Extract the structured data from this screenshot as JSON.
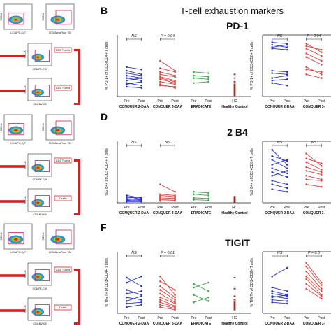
{
  "figure": {
    "title": "T-cell exhaustion markers",
    "colors": {
      "conquer2": "#2a35c8",
      "conquer3": "#e0403a",
      "eradicate": "#3aaa4a",
      "hc": "#b0201a",
      "flow_red": "#d62020"
    },
    "flow_labels": {
      "fsc": "FSC-A",
      "ssc": "SSC-A",
      "live": "L/D-APC-Cy7",
      "cd3": "CD3-AlexaFluor 700",
      "cd8": "CD8-PE-Cy5",
      "cd4": "CD4-BV605",
      "gate_cd8": "CD8 T cells",
      "gate_cd4": "CD4 T cells",
      "gate_t": "T cells"
    },
    "panels": [
      {
        "letter": "B",
        "marker": "PD-1",
        "left": {
          "ylabel": "% PD-1+ of CD3+CD4+ T cells",
          "stats": [
            "NS",
            "P = 0.04",
            "",
            ""
          ],
          "groups": [
            "CONQUER 2-DAA",
            "CONQUER 3-DAA",
            "ERADICATE",
            "Healthy Control"
          ],
          "ticks": [
            "Pre",
            "Post",
            "Pre",
            "Post",
            "Pre",
            "Post",
            "HC"
          ]
        },
        "right": {
          "ylabel": "% PD-1+ of CD3+CD8+ T cells",
          "stats": [
            "NS",
            "P = 0.04"
          ],
          "groups": [
            "CONQUER 2-DAA",
            "CONQUER 3-"
          ],
          "ticks": [
            "Pre",
            "Post",
            "Pre",
            "Post"
          ]
        }
      },
      {
        "letter": "D",
        "marker": "2 B4",
        "left": {
          "ylabel": "% 2 B4+ of CD3+CD4+ T cells",
          "stats": [
            "NS",
            "NS",
            "",
            ""
          ],
          "groups": [
            "CONQUER 2-DAA",
            "CONQUER 3-DAA",
            "ERADICATE",
            "Healthy Control"
          ],
          "ticks": [
            "Pre",
            "Post",
            "Pre",
            "Post",
            "Pre",
            "Post",
            "HC"
          ]
        },
        "right": {
          "ylabel": "% 2 B4+ of CD3+CD8+ T cells",
          "stats": [
            "NS",
            "NS"
          ],
          "groups": [
            "CONQUER 2-DAA",
            "CONQUER 3-"
          ],
          "ticks": [
            "Pre",
            "Post",
            "Pre",
            "Post"
          ]
        }
      },
      {
        "letter": "F",
        "marker": "TIGIT",
        "left": {
          "ylabel": "% TIGIT+ of CD3+CD4+ T cells",
          "stats": [
            "NS",
            "P = 0.01",
            "",
            ""
          ],
          "groups": [
            "CONQUER 2-DAA",
            "CONQUER 3-DAA",
            "ERADICATE",
            "Healthy Control"
          ],
          "ticks": [
            "Pre",
            "Post",
            "Pre",
            "Post",
            "Pre",
            "Post",
            "HC"
          ]
        },
        "right": {
          "ylabel": "% TIGIT+ of CD3+CD8+ T cells",
          "stats": [
            "NS",
            "P = 0.0"
          ],
          "groups": [
            "CONQUER 2-DAA",
            "CONQUER 3-"
          ],
          "ticks": [
            "Pre",
            "Post",
            "Pre",
            "Post"
          ]
        }
      }
    ]
  },
  "chart_data": [
    {
      "type": "line",
      "panel": "B-left",
      "ylim": [
        0,
        100
      ],
      "groups": [
        {
          "name": "CONQUER 2-DAA",
          "pairs": [
            [
              48,
              44
            ],
            [
              42,
              36
            ],
            [
              38,
              34
            ],
            [
              34,
              30
            ],
            [
              30,
              26
            ],
            [
              26,
              30
            ],
            [
              22,
              18
            ],
            [
              20,
              24
            ],
            [
              16,
              14
            ]
          ]
        },
        {
          "name": "CONQUER 3-DAA",
          "pairs": [
            [
              58,
              42
            ],
            [
              46,
              40
            ],
            [
              40,
              34
            ],
            [
              36,
              32
            ],
            [
              32,
              26
            ],
            [
              30,
              24
            ],
            [
              28,
              22
            ],
            [
              24,
              20
            ],
            [
              20,
              14
            ],
            [
              18,
              16
            ]
          ]
        },
        {
          "name": "ERADICATE",
          "pairs": [
            [
              40,
              38
            ],
            [
              34,
              32
            ],
            [
              30,
              28
            ],
            [
              22,
              24
            ]
          ]
        },
        {
          "name": "Healthy Control",
          "values": [
            2,
            4,
            6,
            8,
            10,
            12,
            14,
            16,
            18,
            20,
            24,
            30,
            36
          ]
        }
      ]
    },
    {
      "type": "line",
      "panel": "B-right",
      "ylim": [
        0,
        100
      ],
      "groups": [
        {
          "name": "CONQUER 2-DAA",
          "pairs": [
            [
              88,
              86
            ],
            [
              84,
              80
            ],
            [
              80,
              84
            ],
            [
              78,
              76
            ],
            [
              42,
              40
            ],
            [
              38,
              36
            ],
            [
              30,
              34
            ],
            [
              26,
              28
            ],
            [
              22,
              18
            ]
          ]
        },
        {
          "name": "CONQUER 3-",
          "pairs": [
            [
              86,
              72
            ],
            [
              82,
              76
            ],
            [
              78,
              66
            ],
            [
              70,
              58
            ],
            [
              64,
              52
            ],
            [
              48,
              36
            ],
            [
              44,
              40
            ],
            [
              36,
              30
            ]
          ]
        }
      ]
    },
    {
      "type": "line",
      "panel": "D-left",
      "ylim": [
        0,
        100
      ],
      "groups": [
        {
          "name": "CONQUER 2-DAA",
          "pairs": [
            [
              12,
              8
            ],
            [
              10,
              6
            ],
            [
              8,
              9
            ],
            [
              6,
              5
            ],
            [
              5,
              7
            ],
            [
              4,
              3
            ],
            [
              3,
              4
            ],
            [
              2,
              2
            ]
          ]
        },
        {
          "name": "CONQUER 3-DAA",
          "pairs": [
            [
              30,
              18
            ],
            [
              14,
              12
            ],
            [
              12,
              10
            ],
            [
              10,
              9
            ],
            [
              8,
              7
            ],
            [
              6,
              6
            ],
            [
              5,
              4
            ],
            [
              3,
              3
            ]
          ]
        },
        {
          "name": "ERADICATE",
          "pairs": [
            [
              18,
              16
            ],
            [
              14,
              12
            ],
            [
              8,
              7
            ],
            [
              5,
              4
            ]
          ]
        },
        {
          "name": "Healthy Control",
          "values": [
            1,
            2,
            3,
            4,
            5,
            6,
            7,
            8,
            10
          ]
        }
      ]
    },
    {
      "type": "line",
      "panel": "D-right",
      "ylim": [
        0,
        100
      ],
      "groups": [
        {
          "name": "CONQUER 2-DAA",
          "pairs": [
            [
              86,
              62
            ],
            [
              76,
              68
            ],
            [
              70,
              56
            ],
            [
              62,
              70
            ],
            [
              56,
              48
            ],
            [
              50,
              42
            ],
            [
              44,
              52
            ],
            [
              36,
              30
            ],
            [
              30,
              24
            ],
            [
              22,
              18
            ]
          ]
        },
        {
          "name": "CONQUER 3-",
          "pairs": [
            [
              80,
              60
            ],
            [
              72,
              64
            ],
            [
              66,
              54
            ],
            [
              58,
              50
            ],
            [
              52,
              46
            ],
            [
              44,
              38
            ],
            [
              38,
              36
            ],
            [
              30,
              26
            ]
          ]
        }
      ]
    },
    {
      "type": "line",
      "panel": "F-left",
      "ylim": [
        0,
        100
      ],
      "groups": [
        {
          "name": "CONQUER 2-DAA",
          "pairs": [
            [
              58,
              44
            ],
            [
              50,
              60
            ],
            [
              38,
              30
            ],
            [
              32,
              36
            ],
            [
              26,
              22
            ],
            [
              20,
              28
            ],
            [
              16,
              18
            ],
            [
              10,
              14
            ]
          ]
        },
        {
          "name": "CONQUER 3-DAA",
          "pairs": [
            [
              60,
              30
            ],
            [
              52,
              38
            ],
            [
              44,
              26
            ],
            [
              38,
              22
            ],
            [
              32,
              18
            ],
            [
              26,
              16
            ],
            [
              22,
              12
            ],
            [
              18,
              10
            ],
            [
              14,
              8
            ],
            [
              10,
              6
            ]
          ]
        },
        {
          "name": "ERADICATE",
          "pairs": [
            [
              48,
              36
            ],
            [
              42,
              50
            ],
            [
              30,
              20
            ],
            [
              18,
              26
            ]
          ]
        },
        {
          "name": "Healthy Control",
          "values": [
            6,
            8,
            10,
            12,
            14,
            16,
            18,
            22,
            28,
            40,
            58
          ]
        }
      ]
    },
    {
      "type": "line",
      "panel": "F-right",
      "ylim": [
        0,
        100
      ],
      "groups": [
        {
          "name": "CONQUER 2-DAA",
          "pairs": [
            [
              60,
              74
            ],
            [
              42,
              36
            ],
            [
              36,
              30
            ],
            [
              32,
              28
            ],
            [
              28,
              24
            ],
            [
              26,
              30
            ],
            [
              22,
              20
            ],
            [
              18,
              16
            ]
          ]
        },
        {
          "name": "CONQUER 3-",
          "pairs": [
            [
              82,
              50
            ],
            [
              76,
              46
            ],
            [
              68,
              40
            ],
            [
              60,
              36
            ],
            [
              56,
              30
            ],
            [
              48,
              28
            ],
            [
              40,
              24
            ]
          ]
        }
      ]
    }
  ]
}
